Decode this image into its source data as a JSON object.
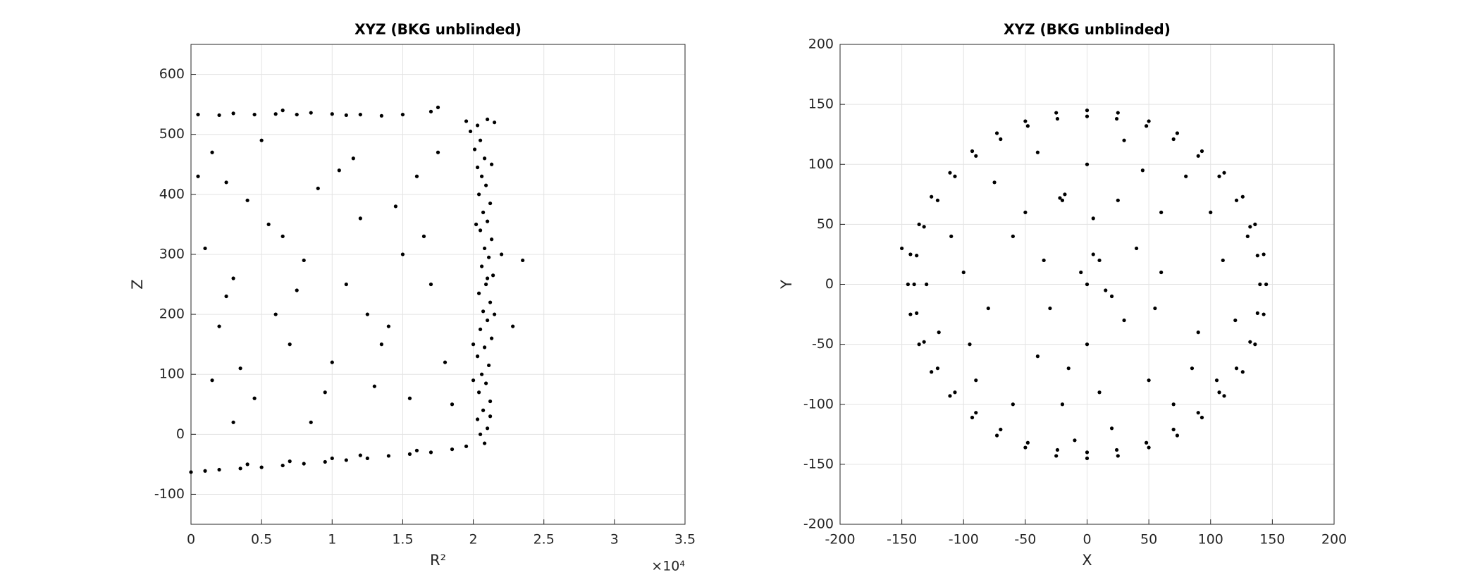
{
  "chart_data": [
    {
      "type": "scatter",
      "title": "XYZ (BKG unblinded)",
      "xlabel": "R²",
      "ylabel": "Z",
      "x_multiplier": "×10⁴",
      "xlim": [
        0,
        3.5
      ],
      "ylim": [
        -150,
        650
      ],
      "xticks": [
        0,
        0.5,
        1,
        1.5,
        2,
        2.5,
        3,
        3.5
      ],
      "yticks": [
        -100,
        0,
        100,
        200,
        300,
        400,
        500,
        600
      ],
      "grid": true,
      "color": "#000000",
      "x": [
        2.08,
        2.05,
        2.1,
        2.03,
        2.07,
        2.12,
        2.04,
        2.09,
        2.06,
        2.11,
        2.03,
        2.08,
        2.13,
        2.05,
        2.1,
        2.07,
        2.12,
        2.04,
        2.09,
        2.14,
        2.06,
        2.11,
        2.08,
        2.13,
        2.05,
        2.1,
        2.07,
        2.12,
        2.04,
        2.09,
        2.06,
        2.03,
        2.08,
        2.01,
        2.05,
        1.98,
        2.03,
        1.95,
        2.1,
        2.15,
        2.12,
        2.1,
        2.15,
        2.0,
        2.02,
        2.35,
        2.28,
        2.2,
        2.0,
        2.13,
        0,
        0.1,
        0.2,
        0.35,
        0.5,
        0.65,
        0.8,
        0.95,
        1.1,
        1.25,
        1.4,
        1.55,
        1.7,
        1.85,
        1.95,
        0.4,
        0.7,
        1.2,
        1.6,
        1.0,
        0.05,
        0.2,
        0.3,
        0.45,
        0.6,
        0.75,
        0.85,
        1.0,
        1.2,
        1.35,
        1.5,
        1.7,
        1.75,
        0.65,
        1.1,
        0.05,
        0.1,
        0.15,
        0.25,
        0.3,
        0.2,
        0.35,
        0.45,
        0.55,
        0.6,
        0.7,
        0.8,
        0.9,
        1.0,
        1.1,
        1.2,
        1.3,
        1.4,
        1.5,
        1.6,
        1.7,
        1.8,
        0.15,
        0.3,
        0.5,
        0.65,
        0.85,
        0.95,
        1.15,
        1.25,
        1.35,
        1.45,
        1.55,
        1.65,
        1.75,
        0.4,
        0.75,
        1.05,
        0.25,
        1.85
      ],
      "y": [
        -15,
        0,
        10,
        25,
        40,
        55,
        70,
        85,
        100,
        115,
        130,
        145,
        160,
        175,
        190,
        205,
        220,
        235,
        250,
        265,
        280,
        295,
        310,
        325,
        340,
        355,
        370,
        385,
        400,
        415,
        430,
        445,
        460,
        475,
        490,
        505,
        515,
        522,
        525,
        520,
        30,
        260,
        200,
        150,
        350,
        290,
        180,
        300,
        90,
        450,
        -63,
        -61,
        -59,
        -57,
        -55,
        -52,
        -49,
        -46,
        -43,
        -40,
        -36,
        -33,
        -30,
        -25,
        -20,
        -50,
        -45,
        -35,
        -27,
        -40,
        533,
        532,
        535,
        533,
        534,
        533,
        536,
        534,
        533,
        531,
        533,
        538,
        545,
        540,
        532,
        430,
        310,
        470,
        420,
        260,
        180,
        110,
        60,
        350,
        200,
        150,
        290,
        410,
        120,
        250,
        360,
        80,
        180,
        300,
        430,
        250,
        120,
        90,
        20,
        490,
        330,
        20,
        70,
        460,
        200,
        150,
        380,
        60,
        330,
        470,
        390,
        240,
        440,
        230,
        50
      ]
    },
    {
      "type": "scatter",
      "title": "XYZ (BKG unblinded)",
      "xlabel": "X",
      "ylabel": "Y",
      "xlim": [
        -200,
        200
      ],
      "ylim": [
        -200,
        200
      ],
      "xticks": [
        -200,
        -150,
        -100,
        -50,
        0,
        50,
        100,
        150,
        200
      ],
      "yticks": [
        -200,
        -150,
        -100,
        -50,
        0,
        50,
        100,
        150,
        200
      ],
      "grid": true,
      "color": "#000000",
      "x": [
        145,
        143,
        136,
        126,
        111,
        93,
        73,
        50,
        25,
        0,
        -25,
        -50,
        -73,
        -93,
        -111,
        -126,
        -136,
        -143,
        -145,
        -143,
        -136,
        -126,
        -111,
        -93,
        -73,
        -50,
        -25,
        0,
        25,
        50,
        73,
        93,
        111,
        126,
        136,
        143,
        140,
        138,
        132,
        121,
        107,
        90,
        70,
        48,
        24,
        0,
        -24,
        -48,
        -70,
        -90,
        -107,
        -121,
        -132,
        -138,
        -140,
        -138,
        -132,
        -121,
        -107,
        -90,
        -70,
        -48,
        -24,
        0,
        24,
        48,
        70,
        90,
        107,
        121,
        132,
        138,
        -150,
        -20,
        -18,
        -22,
        10,
        5,
        -5,
        20,
        40,
        60,
        80,
        -60,
        -80,
        -100,
        -40,
        -20,
        20,
        50,
        90,
        110,
        100,
        -110,
        -90,
        0,
        30,
        -30,
        70,
        -60,
        0,
        30,
        -40,
        120,
        -120,
        60,
        -10,
        15,
        -50,
        45,
        85,
        -75,
        5,
        -15,
        25,
        -95,
        105,
        -130,
        130,
        0,
        55,
        -35,
        10
      ],
      "y": [
        0,
        25,
        50,
        73,
        93,
        111,
        126,
        136,
        143,
        145,
        143,
        136,
        126,
        111,
        93,
        73,
        50,
        25,
        0,
        -25,
        -50,
        -73,
        -93,
        -111,
        -126,
        -136,
        -143,
        -145,
        -143,
        -136,
        -126,
        -111,
        -93,
        -73,
        -50,
        -25,
        0,
        24,
        48,
        70,
        90,
        107,
        121,
        132,
        138,
        140,
        138,
        132,
        121,
        107,
        90,
        70,
        48,
        24,
        0,
        -24,
        -48,
        -70,
        -90,
        -107,
        -121,
        -132,
        -138,
        -140,
        -138,
        -132,
        -121,
        -107,
        -90,
        -70,
        -48,
        -24,
        30,
        70,
        75,
        72,
        20,
        25,
        10,
        -10,
        30,
        60,
        90,
        40,
        -20,
        10,
        -60,
        -100,
        -120,
        -80,
        -40,
        20,
        60,
        40,
        -80,
        -50,
        -30,
        -20,
        -100,
        -100,
        100,
        120,
        110,
        -30,
        -40,
        10,
        -130,
        -5,
        60,
        95,
        -70,
        85,
        55,
        -70,
        70,
        -50,
        -80,
        0,
        40,
        0,
        -20,
        20,
        -90
      ]
    }
  ]
}
